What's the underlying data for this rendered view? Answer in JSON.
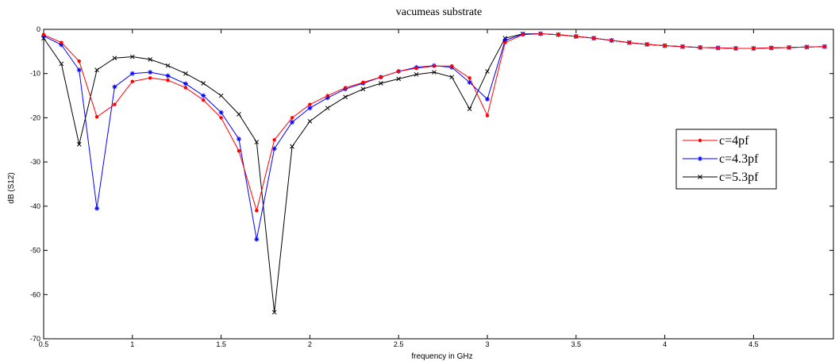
{
  "chart_data": {
    "type": "line",
    "title": "vacumeas substrate",
    "xlabel": "frequency in GHz",
    "ylabel": "dB (S12)",
    "xlim": [
      0.5,
      4.95
    ],
    "ylim": [
      -70,
      0
    ],
    "xticks": [
      0.5,
      1,
      1.5,
      2,
      2.5,
      3,
      3.5,
      4,
      4.5
    ],
    "xtick_labels": [
      "0.5",
      "1",
      "1.5",
      "2",
      "2.5",
      "3",
      "3.5",
      "4",
      "4.5"
    ],
    "yticks": [
      0,
      -10,
      -20,
      -30,
      -40,
      -50,
      -60,
      -70
    ],
    "ytick_labels": [
      "0",
      "-10",
      "-20",
      "-30",
      "-40",
      "-50",
      "-60",
      "-70"
    ],
    "grid": false,
    "legend_position": "right",
    "x": [
      0.5,
      0.6,
      0.7,
      0.8,
      0.9,
      1.0,
      1.1,
      1.2,
      1.3,
      1.4,
      1.5,
      1.6,
      1.7,
      1.8,
      1.9,
      2.0,
      2.1,
      2.2,
      2.3,
      2.4,
      2.5,
      2.6,
      2.7,
      2.8,
      2.9,
      3.0,
      3.1,
      3.2,
      3.3,
      3.4,
      3.5,
      3.6,
      3.7,
      3.8,
      3.9,
      4.0,
      4.1,
      4.2,
      4.3,
      4.4,
      4.5,
      4.6,
      4.7,
      4.8,
      4.9
    ],
    "series": [
      {
        "name": "c=4pf",
        "color": "#ff0000",
        "marker": "dot",
        "values": [
          -1.2,
          -3.0,
          -7.2,
          -19.8,
          -17.0,
          -11.8,
          -11.0,
          -11.5,
          -13.2,
          -16.0,
          -20.0,
          -27.5,
          -41.0,
          -25.0,
          -20.0,
          -17.0,
          -15.0,
          -13.2,
          -12.0,
          -10.8,
          -9.5,
          -8.8,
          -8.3,
          -8.3,
          -11.0,
          -19.5,
          -3.0,
          -1.2,
          -1.0,
          -1.2,
          -1.6,
          -2.0,
          -2.5,
          -3.0,
          -3.4,
          -3.7,
          -3.9,
          -4.1,
          -4.2,
          -4.3,
          -4.3,
          -4.2,
          -4.1,
          -4.0,
          -3.9
        ]
      },
      {
        "name": "c=4.3pf",
        "color": "#0000ff",
        "marker": "star",
        "values": [
          -1.5,
          -3.5,
          -9.2,
          -40.5,
          -13.0,
          -10.0,
          -9.7,
          -10.5,
          -12.3,
          -15.0,
          -18.8,
          -24.8,
          -47.5,
          -27.0,
          -21.0,
          -17.8,
          -15.5,
          -13.5,
          -12.2,
          -10.8,
          -9.5,
          -8.6,
          -8.2,
          -8.6,
          -12.0,
          -15.8,
          -2.5,
          -1.1,
          -1.0,
          -1.2,
          -1.6,
          -2.0,
          -2.5,
          -3.0,
          -3.4,
          -3.7,
          -3.9,
          -4.1,
          -4.2,
          -4.3,
          -4.3,
          -4.2,
          -4.1,
          -4.0,
          -3.9
        ]
      },
      {
        "name": "c=5.3pf",
        "color": "#000000",
        "marker": "x",
        "values": [
          -2.0,
          -7.8,
          -26.0,
          -9.2,
          -6.5,
          -6.2,
          -6.8,
          -8.2,
          -10.0,
          -12.2,
          -15.0,
          -19.2,
          -25.5,
          -64.0,
          -26.5,
          -20.8,
          -17.8,
          -15.3,
          -13.5,
          -12.2,
          -11.2,
          -10.2,
          -9.7,
          -10.8,
          -18.0,
          -9.5,
          -2.0,
          -1.0,
          -1.0,
          -1.2,
          -1.6,
          -2.0,
          -2.5,
          -3.0,
          -3.4,
          -3.7,
          -3.9,
          -4.1,
          -4.2,
          -4.3,
          -4.3,
          -4.2,
          -4.1,
          -4.0,
          -3.9
        ]
      }
    ]
  }
}
